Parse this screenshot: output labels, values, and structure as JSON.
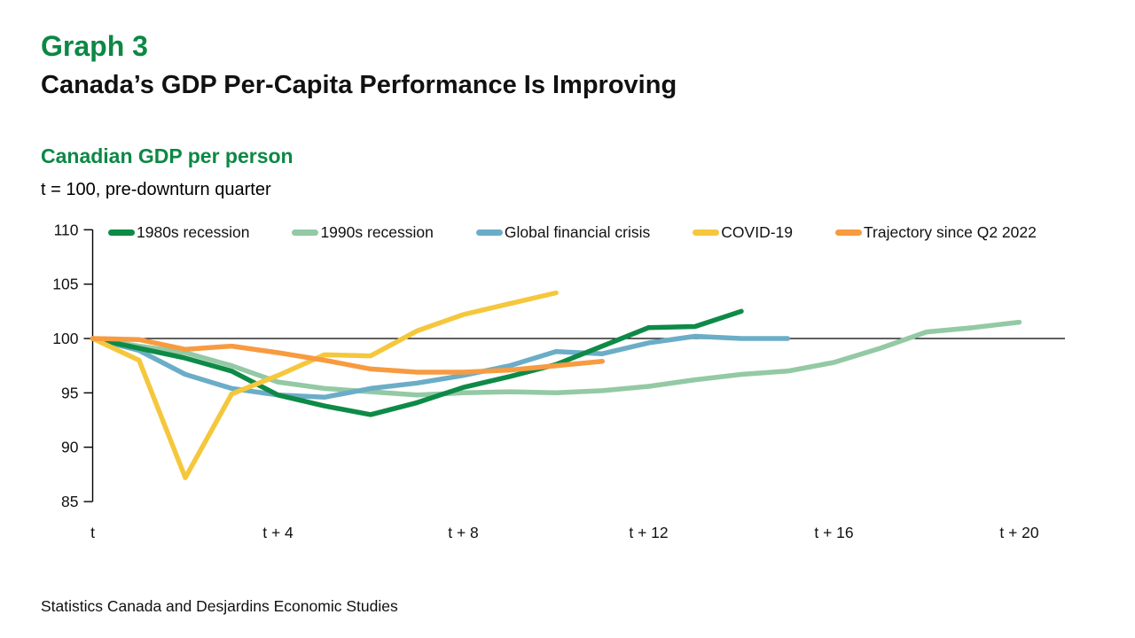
{
  "header": {
    "graph_label": "Graph 3",
    "title": "Canada’s GDP Per-Capita Performance Is Improving",
    "chart_heading": "Canadian GDP per person",
    "axis_note": "t = 100, pre-downturn quarter"
  },
  "footer": {
    "source": "Statistics Canada and Desjardins Economic Studies"
  },
  "colors": {
    "heading_green": "#0c8845",
    "text": "#111111",
    "axis_black": "#000000"
  },
  "chart_data": {
    "type": "line",
    "title": "Canadian GDP per person",
    "subtitle": "t = 100, pre-downturn quarter",
    "x_unit": "quarters after pre-downturn quarter t",
    "x_tick_labels": [
      "t",
      "t + 4",
      "t + 8",
      "t + 12",
      "t + 16",
      "t + 20"
    ],
    "x_tick_quarters": [
      0,
      4,
      8,
      12,
      16,
      20
    ],
    "y_ticks": [
      110,
      105,
      100,
      95,
      90,
      85
    ],
    "ylim": [
      85,
      110
    ],
    "xlim_quarters": [
      0,
      21
    ],
    "reference_line_y": 100,
    "grid": "off",
    "legend_position": "top",
    "series": [
      {
        "name": "1980s recession",
        "color": "#0e8a47",
        "values": [
          100,
          99.1,
          98.2,
          97.0,
          94.8,
          93.8,
          93.0,
          94.1,
          95.5,
          96.5,
          97.6,
          99.3,
          101.0,
          101.1,
          102.5
        ]
      },
      {
        "name": "1990s recession",
        "color": "#93c9a4",
        "values": [
          100,
          99.3,
          98.7,
          97.5,
          96.0,
          95.4,
          95.1,
          94.8,
          95.0,
          95.1,
          95.0,
          95.2,
          95.6,
          96.2,
          96.7,
          97.0,
          97.8,
          99.1,
          100.6,
          101.0,
          101.5
        ]
      },
      {
        "name": "Global financial crisis",
        "color": "#6badc7",
        "values": [
          100,
          98.9,
          96.7,
          95.4,
          94.8,
          94.6,
          95.4,
          95.9,
          96.6,
          97.5,
          98.8,
          98.6,
          99.6,
          100.2,
          100.0,
          100.0
        ]
      },
      {
        "name": "COVID-19",
        "color": "#f5c73d",
        "values": [
          100,
          98.0,
          87.2,
          94.9,
          96.6,
          98.5,
          98.4,
          100.7,
          102.2,
          103.2,
          104.2
        ]
      },
      {
        "name": "Trajectory since Q2 2022",
        "color": "#f79b40",
        "values": [
          100,
          99.9,
          99.0,
          99.3,
          98.7,
          98.0,
          97.2,
          96.9,
          96.9,
          97.1,
          97.5,
          97.9
        ]
      }
    ],
    "draw_order": [
      1,
      2,
      0,
      3,
      4
    ]
  }
}
